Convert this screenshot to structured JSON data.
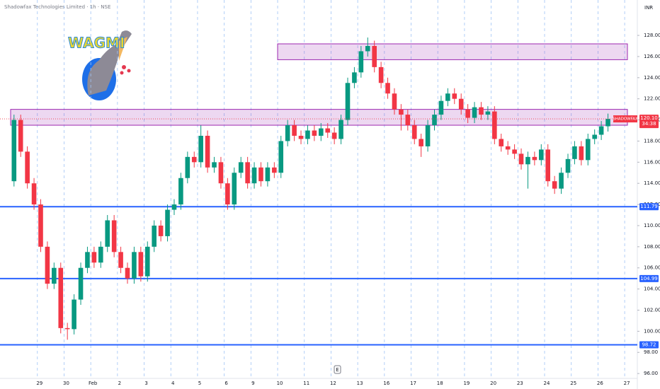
{
  "chart_data": {
    "type": "candlestick",
    "title": "Shadowfax Technologies Limited · 1h · NSE",
    "currency": "INR",
    "symbol": "SHADOWFAX",
    "countdown": "34:38",
    "last_price": 120.1,
    "last_price_label": "120.10",
    "event_marker": "E",
    "logo_text": "WAGMI",
    "up_color": "#089981",
    "down_color": "#f23645",
    "open": [
      114.2,
      120,
      117,
      114,
      112,
      108,
      104.5,
      106,
      100.3,
      100.2,
      103,
      106,
      107.5,
      106.5,
      108,
      110.5,
      107.5,
      106,
      105,
      107.5,
      105.2,
      108,
      110,
      109,
      111.5,
      112,
      114.5,
      116.5,
      116,
      118.5,
      115.5,
      116,
      114,
      112,
      115,
      116,
      114,
      115.5,
      114.2,
      115.5,
      115,
      118,
      119.5,
      118.5,
      118.2,
      119,
      118.5,
      119.2,
      118.8,
      118.2,
      120,
      123.5,
      124.5,
      126.5,
      127,
      125,
      123.5,
      122.5,
      121,
      120.5,
      119.5,
      118.2,
      117.5,
      119.5,
      120.5,
      121.8,
      122.5,
      122,
      121,
      120.2,
      121.2,
      120.5,
      120.8,
      118.2,
      117.5,
      117.2,
      116.8,
      115.8,
      116.5,
      116.2,
      117.2,
      114.2,
      113.5,
      115,
      116.3,
      117.5,
      116.2,
      118.2,
      118.6,
      119.4
    ],
    "high": [
      120.5,
      120.5,
      117.5,
      114.5,
      112.5,
      108.5,
      106.5,
      106.5,
      100.8,
      103.5,
      106.5,
      108,
      108,
      108.5,
      111,
      111,
      108,
      106.5,
      108,
      108,
      108.5,
      110.5,
      110.5,
      112,
      112.5,
      115,
      117,
      117,
      119.5,
      119,
      116.5,
      116.5,
      114.5,
      115.5,
      116.5,
      116.5,
      116,
      116,
      116,
      116,
      118.5,
      120,
      120,
      119,
      119.5,
      119.5,
      119.7,
      119.7,
      119.3,
      120.5,
      124,
      125,
      127,
      127.8,
      127.5,
      125.5,
      124,
      123,
      121.5,
      121,
      120,
      118.7,
      120,
      121,
      122.3,
      123,
      123,
      122.5,
      121.5,
      121.7,
      121.7,
      121.3,
      121.3,
      118.7,
      118,
      117.7,
      117.3,
      117,
      117,
      117.7,
      117.7,
      114.7,
      115.5,
      116.8,
      118,
      118,
      118.7,
      119.1,
      119.9,
      120.6
    ],
    "low": [
      113.7,
      116.5,
      113.5,
      111.5,
      107.5,
      104,
      104,
      99.8,
      99.2,
      99.7,
      102.5,
      105.5,
      106,
      106,
      107.5,
      107,
      105.5,
      104.5,
      104.5,
      104.7,
      104.7,
      107.5,
      108.5,
      108.5,
      111,
      111.5,
      114,
      115.5,
      115.5,
      115,
      115,
      113.5,
      111.5,
      111.5,
      114.5,
      113.5,
      113.5,
      113.7,
      113.7,
      114.5,
      114.5,
      117.5,
      118,
      117.7,
      117.7,
      118,
      118,
      118.3,
      117.7,
      117.7,
      119.5,
      123,
      124,
      126,
      124.5,
      123,
      122,
      120.5,
      119,
      119,
      117.7,
      116.5,
      117,
      119,
      120,
      121.3,
      121.5,
      120.5,
      119.7,
      119.7,
      120,
      120,
      117.7,
      117,
      116.7,
      116.3,
      115.3,
      113.5,
      115.7,
      115.7,
      113.7,
      113,
      113,
      114.5,
      115.8,
      115.7,
      115.7,
      117.7,
      118.1,
      118.9
    ],
    "close": [
      120,
      117,
      114,
      112,
      108,
      104.5,
      106,
      100.3,
      100.2,
      103,
      106,
      107.5,
      106.5,
      108,
      110.5,
      107.5,
      106,
      105,
      107.5,
      105.2,
      108,
      110,
      109,
      111.5,
      112,
      114.5,
      116.5,
      116,
      118.5,
      115.5,
      116,
      114,
      112,
      115,
      116,
      114,
      115.5,
      114.2,
      115.5,
      115,
      118,
      119.5,
      118.5,
      118.2,
      119,
      118.5,
      119.2,
      118.8,
      118.2,
      120,
      123.5,
      124.5,
      126.5,
      127,
      125,
      123.5,
      122.5,
      121,
      120.5,
      119.5,
      118.2,
      117.5,
      119.5,
      120.5,
      121.8,
      122.5,
      122,
      121,
      120.2,
      121.2,
      120.5,
      120.8,
      118.2,
      117.5,
      117.2,
      116.8,
      115.8,
      116.5,
      116.2,
      117.2,
      114.2,
      113.5,
      115,
      116.3,
      117.5,
      116.2,
      118.2,
      118.6,
      119.4,
      120.1
    ],
    "xticks": [
      {
        "value": 4,
        "label": "29"
      },
      {
        "value": 8,
        "label": "30"
      },
      {
        "value": 12,
        "label": "Feb"
      },
      {
        "value": 16,
        "label": "2"
      },
      {
        "value": 20,
        "label": "3"
      },
      {
        "value": 24,
        "label": "4"
      },
      {
        "value": 28,
        "label": "5"
      },
      {
        "value": 32,
        "label": "6"
      },
      {
        "value": 36,
        "label": "9"
      },
      {
        "value": 40,
        "label": "10"
      },
      {
        "value": 44,
        "label": "11"
      },
      {
        "value": 48,
        "label": "12"
      },
      {
        "value": 52,
        "label": "13"
      },
      {
        "value": 56,
        "label": "16"
      },
      {
        "value": 60,
        "label": "17"
      },
      {
        "value": 64,
        "label": "18"
      },
      {
        "value": 68,
        "label": "19"
      },
      {
        "value": 72,
        "label": "20"
      },
      {
        "value": 76,
        "label": "23"
      },
      {
        "value": 80,
        "label": "24"
      },
      {
        "value": 84,
        "label": "25"
      },
      {
        "value": 88,
        "label": "26"
      },
      {
        "value": 92,
        "label": "27"
      }
    ],
    "xlim": [
      -2.1,
      93.4
    ],
    "ylim": [
      95.54,
      131.35
    ],
    "yticks": [
      {
        "value": 96,
        "label": "96.00"
      },
      {
        "value": 98,
        "label": "98.00"
      },
      {
        "value": 100,
        "label": "100.00"
      },
      {
        "value": 102,
        "label": "102.00"
      },
      {
        "value": 104,
        "label": "104.00"
      },
      {
        "value": 106,
        "label": "106.00"
      },
      {
        "value": 108,
        "label": "108.00"
      },
      {
        "value": 110,
        "label": "110.00"
      },
      {
        "value": 112,
        "label": "112.00"
      },
      {
        "value": 114,
        "label": "114.00"
      },
      {
        "value": 116,
        "label": "116.00"
      },
      {
        "value": 118,
        "label": "118.00"
      },
      {
        "value": 120,
        "label": "120.00"
      },
      {
        "value": 122,
        "label": "122.00"
      },
      {
        "value": 124,
        "label": "124.00"
      },
      {
        "value": 126,
        "label": "126.00"
      },
      {
        "value": 128,
        "label": "128.00"
      }
    ],
    "levels": [
      {
        "value": 111.79,
        "color": "#2962ff"
      },
      {
        "value": 104.99,
        "color": "#2962ff"
      },
      {
        "value": 98.72,
        "color": "#2962ff"
      }
    ],
    "zones": [
      {
        "low": 125.7,
        "high": 127.2,
        "color": "#9c27b0"
      },
      {
        "low": 119.5,
        "high": 121.0,
        "color": "#9c27b0"
      }
    ]
  }
}
